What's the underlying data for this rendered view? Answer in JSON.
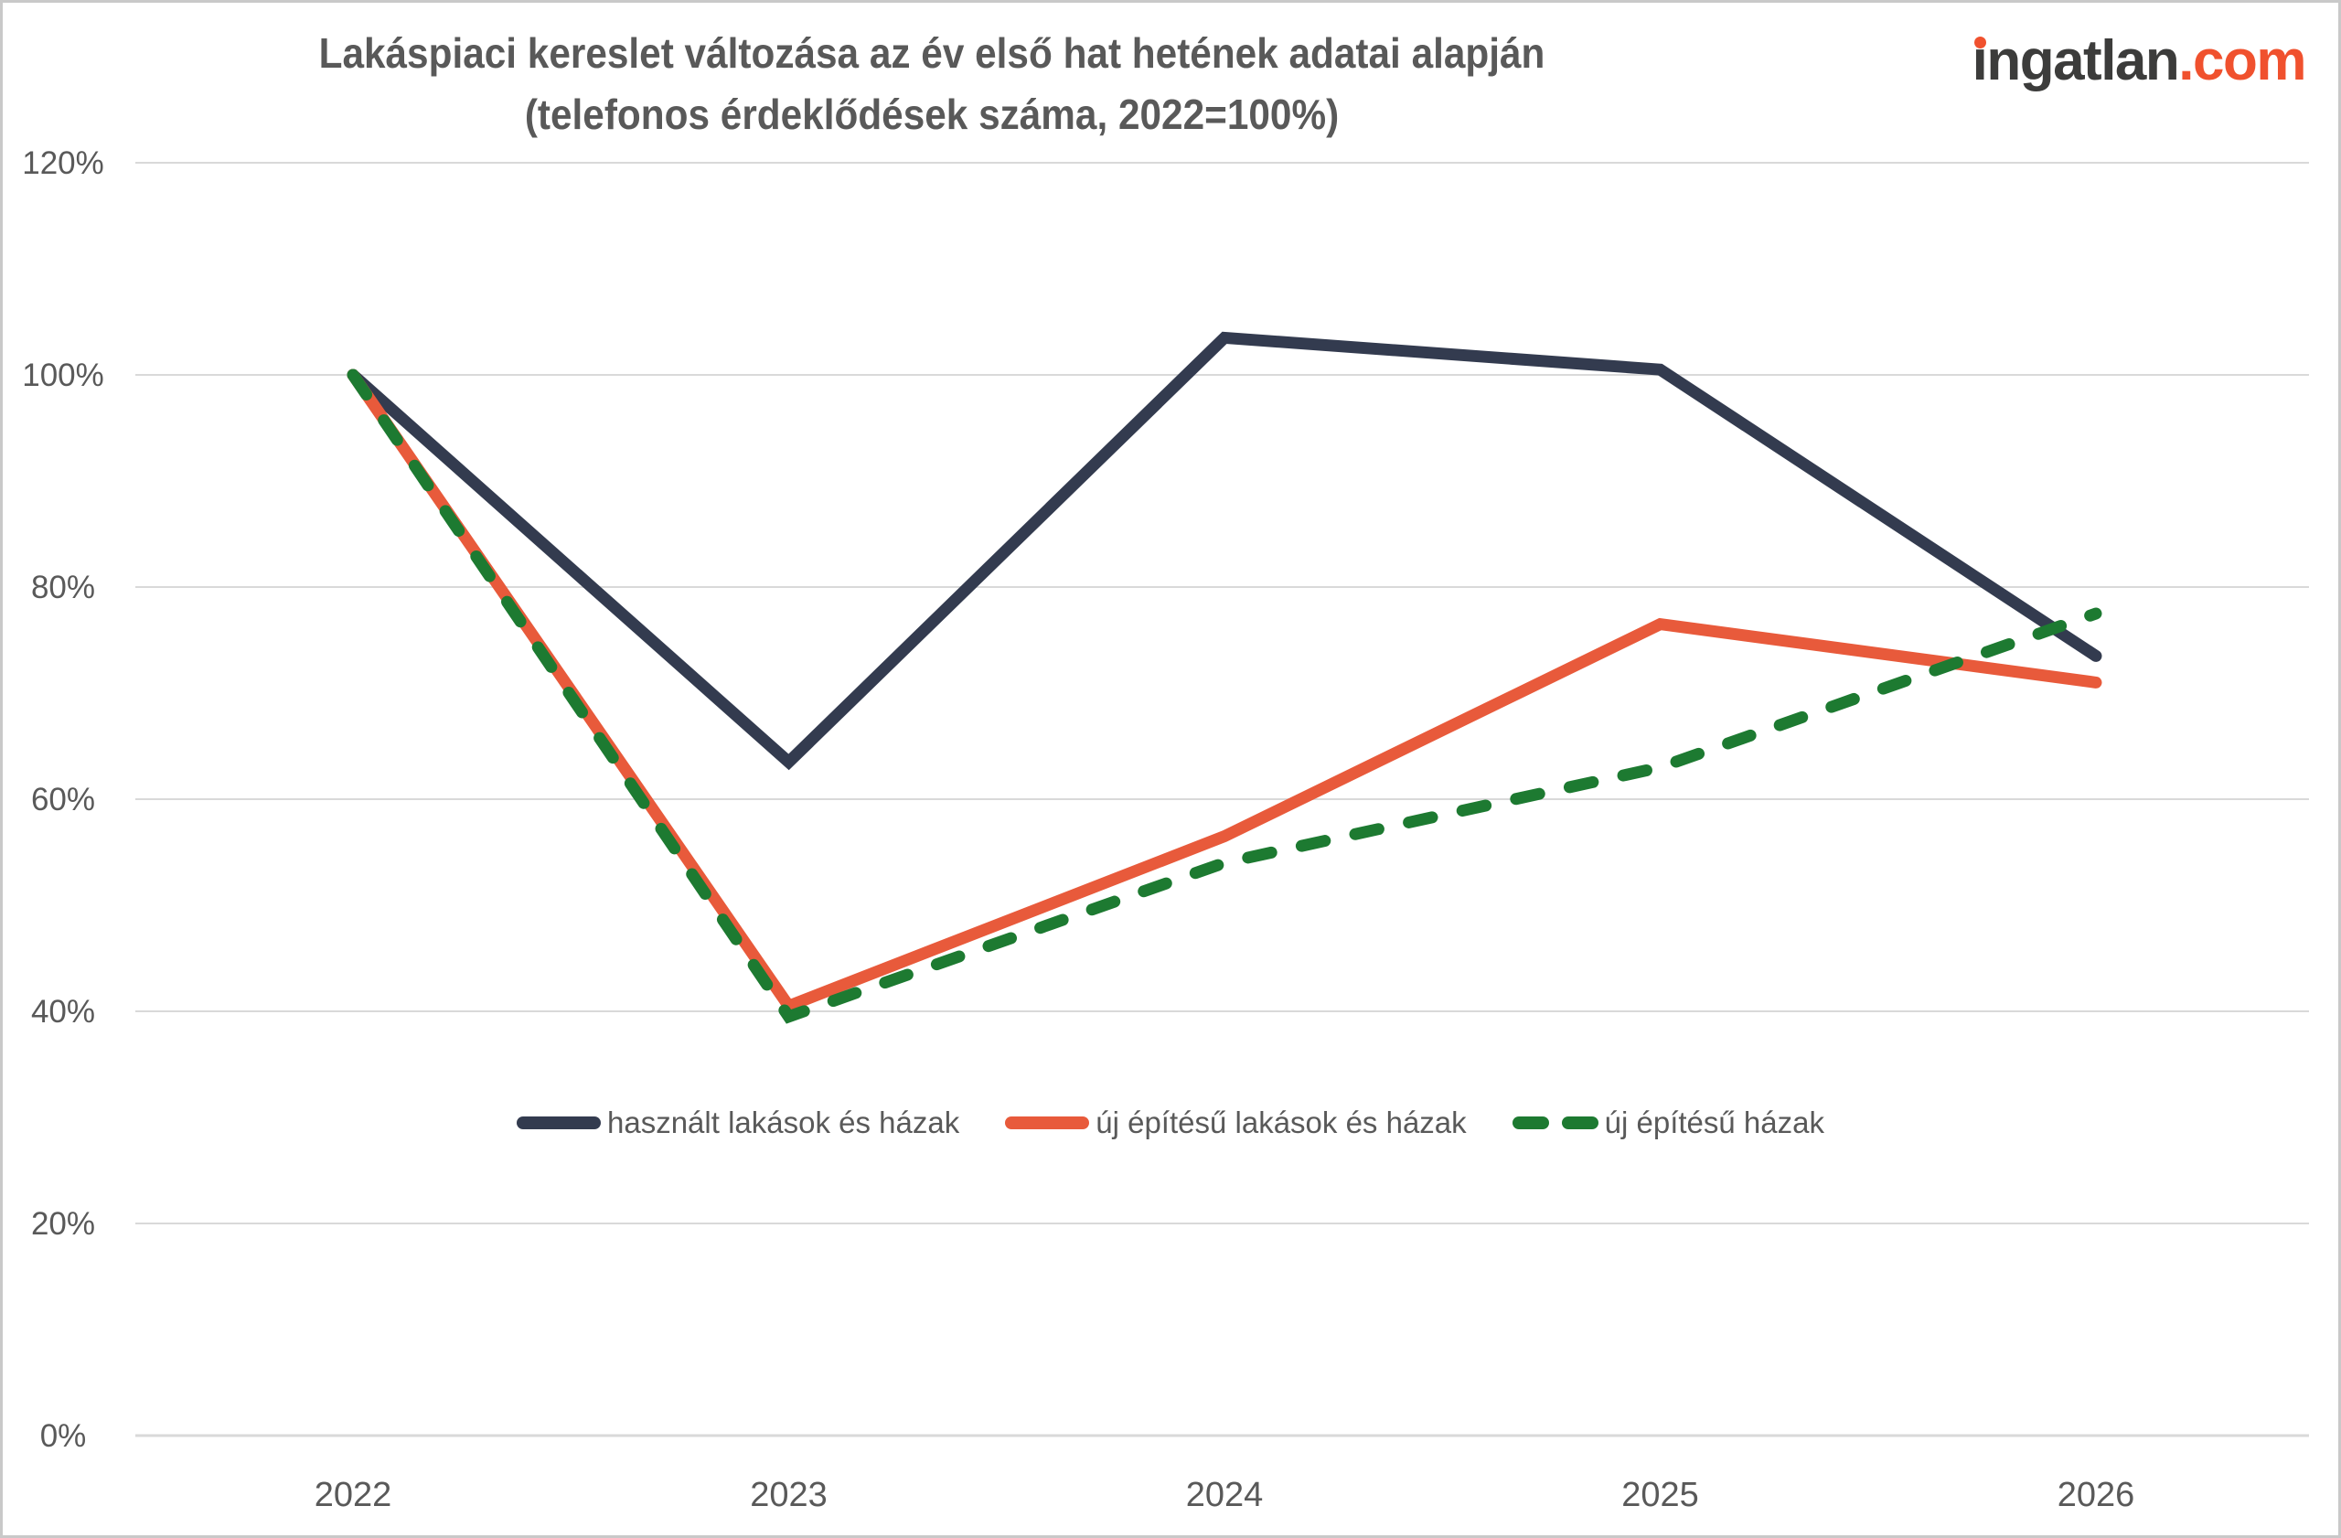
{
  "title": {
    "line1": "Lakáspiaci kereslet változása az év első hat hetének adatai alapján",
    "line2": "(telefonos érdeklődések száma, 2022=100%)"
  },
  "logo": {
    "name": "ingatlan",
    "tld": ".com",
    "name_color": "#3c3c3b",
    "accent_color": "#f0512e"
  },
  "chart_data": {
    "type": "line",
    "x_labels": [
      "2022",
      "2023",
      "2024",
      "2025",
      "2026"
    ],
    "series": [
      {
        "name": "használt lakások és házak",
        "color": "#333b4f",
        "dash": false,
        "values": [
          100,
          63.5,
          103.5,
          100.5,
          73.5
        ]
      },
      {
        "name": "új építésű lakások és házak",
        "color": "#e85a3b",
        "dash": false,
        "values": [
          100,
          40.5,
          56.5,
          76.5,
          71
        ]
      },
      {
        "name": "új építésű házak",
        "color": "#1d7a31",
        "dash": true,
        "values": [
          100,
          39.5,
          54,
          63,
          77.5
        ]
      }
    ],
    "ylim": [
      0,
      120
    ],
    "ytick_step": 20,
    "ytick_labels": [
      "0%",
      "20%",
      "40%",
      "60%",
      "80%",
      "100%",
      "120%"
    ],
    "grid": true,
    "grid_color": "#d9d9d9",
    "axis_text_color": "#595959",
    "legend_position": "inside-bottom"
  }
}
